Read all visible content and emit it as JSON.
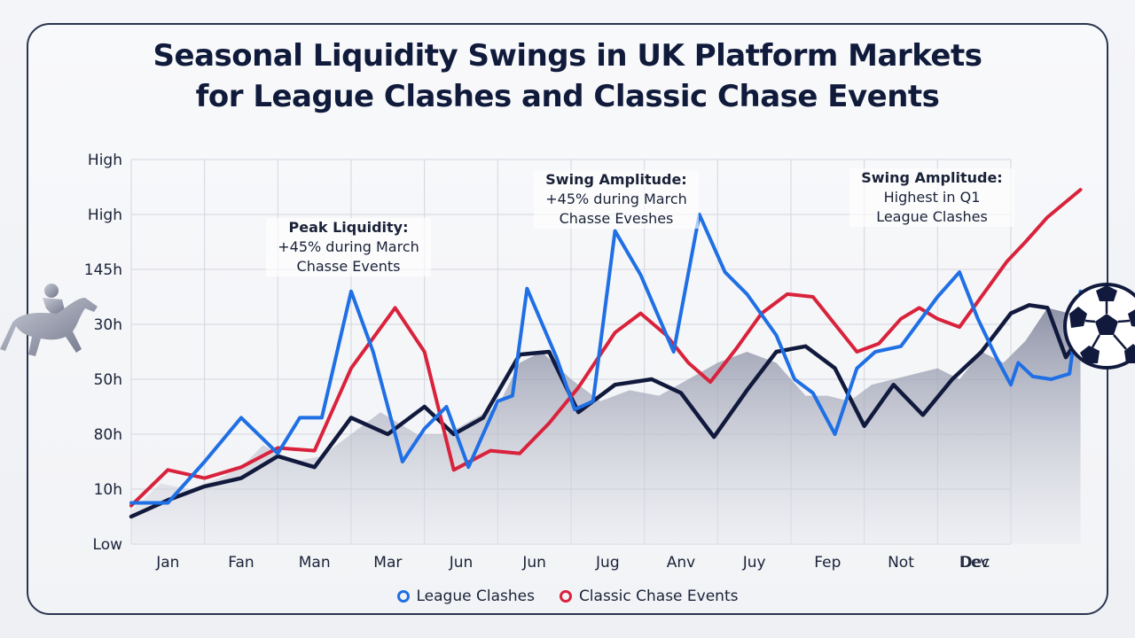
{
  "title": {
    "line1": "Seasonal Liquidity Swings in UK Platform Markets",
    "line2": "for League Clashes and Classic Chase Events"
  },
  "icons": {
    "left": "racehorse-jockey-icon",
    "right": "soccer-ball-icon"
  },
  "colors": {
    "league": "#1f6fe5",
    "classic": "#d9223c",
    "baseline": "#111a3d",
    "area": "#8a8fa8"
  },
  "chart_data": {
    "type": "line",
    "title": "Seasonal Liquidity Swings in UK Platform Markets for League Clashes and Classic Chase Events",
    "ytick_labels": [
      "Low",
      "10h",
      "80h",
      "50h",
      "30h",
      "145h",
      "High",
      "High"
    ],
    "categories": [
      "Jan",
      "Fan",
      "Man",
      "Mar",
      "Jun",
      "Jun",
      "Jug",
      "Anv",
      "Juy",
      "Fep",
      "Not",
      "Dev",
      "Dec"
    ],
    "ylim": [
      0,
      7
    ],
    "grid": true,
    "legend_position": "bottom-center",
    "series": [
      {
        "name": "League Clashes",
        "color": "#1f6fe5",
        "x": [
          0,
          0.5,
          1,
          1.5,
          2,
          2.3,
          2.6,
          3,
          3.3,
          3.7,
          4,
          4.3,
          4.6,
          5,
          5.2,
          5.4,
          5.8,
          6.05,
          6.3,
          6.6,
          6.95,
          7.4,
          7.75,
          8.1,
          8.4,
          8.8,
          9.05,
          9.3,
          9.6,
          9.9,
          10.15,
          10.5,
          11,
          11.3,
          11.55,
          11.8,
          12,
          12.1,
          12.3,
          12.55,
          12.8,
          12.95
        ],
        "values": [
          0.75,
          0.75,
          1.5,
          2.3,
          1.65,
          2.3,
          2.3,
          4.6,
          3.5,
          1.5,
          2.1,
          2.5,
          1.4,
          2.6,
          2.7,
          4.65,
          3.4,
          2.45,
          2.6,
          5.7,
          4.9,
          3.5,
          6.0,
          4.95,
          4.55,
          3.8,
          3.0,
          2.75,
          2.0,
          3.2,
          3.5,
          3.6,
          4.5,
          4.95,
          4.1,
          3.4,
          2.9,
          3.3,
          3.05,
          3.0,
          3.1,
          4.6
        ]
      },
      {
        "name": "Classic Chase Events",
        "color": "#d9223c",
        "x": [
          0,
          0.5,
          1,
          1.5,
          2,
          2.5,
          3,
          3.6,
          4,
          4.4,
          4.9,
          5.3,
          5.7,
          6.1,
          6.6,
          6.95,
          7.3,
          7.6,
          7.9,
          8.25,
          8.6,
          8.95,
          9.3,
          9.6,
          9.9,
          10.2,
          10.5,
          10.75,
          11,
          11.3,
          11.65,
          11.95,
          12.2,
          12.5,
          12.95
        ],
        "values": [
          0.7,
          1.35,
          1.2,
          1.4,
          1.75,
          1.7,
          3.2,
          4.3,
          3.5,
          1.35,
          1.7,
          1.65,
          2.2,
          2.85,
          3.85,
          4.2,
          3.8,
          3.3,
          2.95,
          3.55,
          4.2,
          4.55,
          4.5,
          4.0,
          3.5,
          3.65,
          4.1,
          4.3,
          4.1,
          3.95,
          4.6,
          5.15,
          5.5,
          5.95,
          6.45
        ]
      },
      {
        "name": "",
        "color": "#111a3d",
        "x": [
          0,
          0.5,
          1,
          1.5,
          2,
          2.5,
          3,
          3.5,
          4,
          4.4,
          4.8,
          5.3,
          5.7,
          6.1,
          6.6,
          7.1,
          7.5,
          7.95,
          8.4,
          8.8,
          9.2,
          9.6,
          10.0,
          10.4,
          10.8,
          11.2,
          11.6,
          12.0,
          12.25,
          12.5,
          12.75,
          12.95
        ],
        "values": [
          0.5,
          0.8,
          1.05,
          1.2,
          1.6,
          1.4,
          2.3,
          2.0,
          2.5,
          2.0,
          2.3,
          3.45,
          3.5,
          2.4,
          2.9,
          3.0,
          2.75,
          1.95,
          2.8,
          3.5,
          3.6,
          3.2,
          2.15,
          2.9,
          2.35,
          3.0,
          3.5,
          4.2,
          4.35,
          4.3,
          3.4,
          3.8
        ]
      }
    ],
    "area": {
      "x": [
        0,
        0.4,
        0.8,
        1.2,
        1.5,
        1.8,
        2.2,
        2.6,
        3.0,
        3.4,
        3.9,
        4.3,
        4.7,
        5.0,
        5.3,
        5.6,
        6.0,
        6.4,
        6.8,
        7.2,
        7.6,
        8.0,
        8.4,
        8.8,
        9.2,
        9.5,
        9.8,
        10.1,
        10.4,
        10.7,
        11.0,
        11.3,
        11.6,
        11.9,
        12.2,
        12.5,
        12.8,
        12.95
      ],
      "values": [
        0.6,
        1.1,
        1.0,
        1.2,
        1.4,
        1.8,
        1.5,
        1.6,
        2.0,
        2.4,
        2.0,
        2.0,
        2.3,
        2.5,
        3.3,
        3.5,
        3.0,
        2.6,
        2.8,
        2.7,
        3.0,
        3.3,
        3.5,
        3.3,
        2.7,
        2.7,
        2.6,
        2.9,
        3.0,
        3.1,
        3.2,
        3.0,
        3.5,
        3.3,
        3.7,
        4.3,
        4.2,
        4.0
      ]
    },
    "annotations": [
      {
        "head": "Peak Liquidity:",
        "lines": [
          "+45% during March",
          "Chasse Events"
        ]
      },
      {
        "head": "Swing Amplitude:",
        "lines": [
          "+45% during March",
          "Chasse Eveshes"
        ]
      },
      {
        "head": "Swing Amplitude:",
        "lines": [
          "Highest in Q1",
          "League Clashes"
        ]
      }
    ]
  },
  "legend": {
    "items": [
      {
        "label": "League Clashes",
        "color": "#1f6fe5"
      },
      {
        "label": "Classic Chase Events",
        "color": "#d9223c"
      }
    ]
  }
}
